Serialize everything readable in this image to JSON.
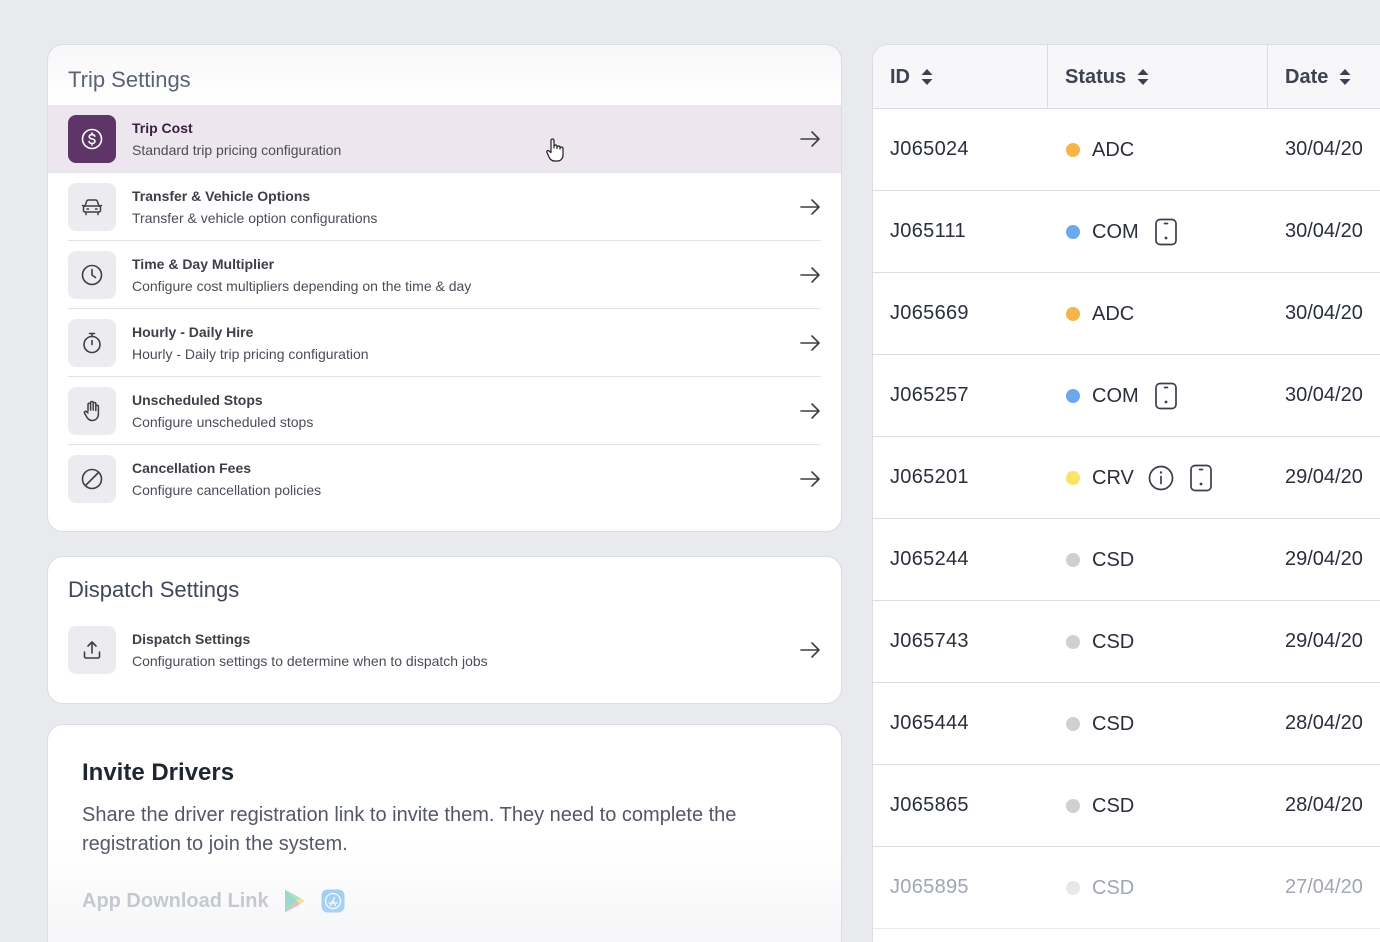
{
  "trip_settings": {
    "title": "Trip Settings",
    "items": [
      {
        "title": "Trip Cost",
        "description": "Standard trip pricing configuration",
        "icon": "dollar-icon"
      },
      {
        "title": "Transfer & Vehicle Options",
        "description": "Transfer & vehicle option configurations",
        "icon": "car-icon"
      },
      {
        "title": "Time & Day Multiplier",
        "description": "Configure cost multipliers depending on the time & day",
        "icon": "clock-icon"
      },
      {
        "title": "Hourly - Daily Hire",
        "description": "Hourly - Daily trip pricing configuration",
        "icon": "stopwatch-icon"
      },
      {
        "title": "Unscheduled Stops",
        "description": "Configure unscheduled stops",
        "icon": "hand-icon"
      },
      {
        "title": "Cancellation Fees",
        "description": "Configure cancellation policies",
        "icon": "cancel-icon"
      }
    ]
  },
  "dispatch_settings": {
    "title": "Dispatch Settings",
    "items": [
      {
        "title": "Dispatch Settings",
        "description": "Configuration settings to determine when to dispatch jobs",
        "icon": "upload-icon"
      }
    ]
  },
  "invite_drivers": {
    "title": "Invite Drivers",
    "description": "Share the driver registration link to invite them. They need to complete the registration to join the system.",
    "download_label": "App Download Link"
  },
  "jobs_table": {
    "columns": [
      "ID",
      "Status",
      "Date"
    ],
    "rows": [
      {
        "id": "J065024",
        "status": "ADC",
        "status_color": "#f5b54a",
        "date": "30/04/20",
        "icons": []
      },
      {
        "id": "J065111",
        "status": "COM",
        "status_color": "#6aa8ef",
        "date": "30/04/20",
        "icons": [
          "phone-icon"
        ]
      },
      {
        "id": "J065669",
        "status": "ADC",
        "status_color": "#f5b54a",
        "date": "30/04/20",
        "icons": []
      },
      {
        "id": "J065257",
        "status": "COM",
        "status_color": "#6aa8ef",
        "date": "30/04/20",
        "icons": [
          "phone-icon"
        ]
      },
      {
        "id": "J065201",
        "status": "CRV",
        "status_color": "#f7e56a",
        "date": "29/04/20",
        "icons": [
          "info-icon",
          "phone-icon"
        ]
      },
      {
        "id": "J065244",
        "status": "CSD",
        "status_color": "#cfd0d4",
        "date": "29/04/20",
        "icons": []
      },
      {
        "id": "J065743",
        "status": "CSD",
        "status_color": "#cfd0d4",
        "date": "29/04/20",
        "icons": []
      },
      {
        "id": "J065444",
        "status": "CSD",
        "status_color": "#cfd0d4",
        "date": "28/04/20",
        "icons": []
      },
      {
        "id": "J065865",
        "status": "CSD",
        "status_color": "#cfd0d4",
        "date": "28/04/20",
        "icons": []
      },
      {
        "id": "J065895",
        "status": "CSD",
        "status_color": "#cfd0d4",
        "date": "27/04/20",
        "icons": []
      }
    ]
  },
  "colors": {
    "accent": "#5e3566",
    "active_row_bg": "#ede6ee"
  }
}
